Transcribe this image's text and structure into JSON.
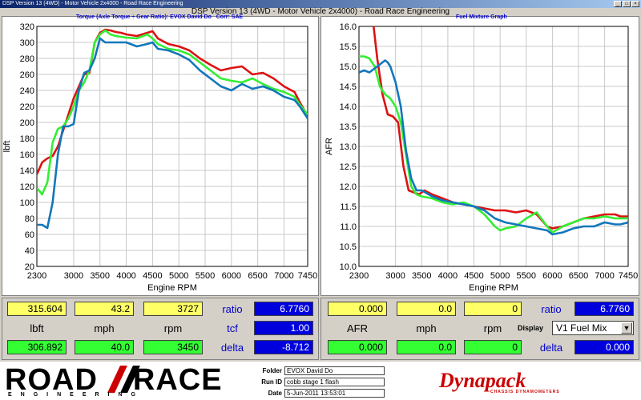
{
  "window": {
    "title": "DSP Version 13 (4WD) - Motor Vehicle 2x4000 - Road Race Engineering"
  },
  "main_title": "DSP Version 13 (4WD - Motor Vehicle 2x4000) - Road Race Engineering",
  "colors": {
    "red": "#dd1111",
    "green": "#33ee33",
    "blue": "#1177bb"
  },
  "torque_panel": {
    "title": "Torque (Axle Torque ÷ Gear Ratio): EVOX David Do",
    "corr": "Corr: SAE",
    "chart_data": {
      "type": "line",
      "xlabel": "Engine RPM",
      "ylabel": "lbft",
      "xlim": [
        2300,
        7450
      ],
      "ylim": [
        20,
        320
      ],
      "x_ticks": [
        "2300",
        "3000",
        "3500",
        "4000",
        "4500",
        "5000",
        "5500",
        "6000",
        "6500",
        "7000",
        "7450"
      ],
      "y_ticks": [
        "20",
        "40",
        "60",
        "80",
        "100",
        "120",
        "140",
        "160",
        "180",
        "200",
        "220",
        "240",
        "260",
        "280",
        "300",
        "320"
      ],
      "series": [
        {
          "color": "#dd1111",
          "x": [
            2300,
            2400,
            2500,
            2600,
            2700,
            2800,
            2900,
            3000,
            3100,
            3200,
            3300,
            3400,
            3500,
            3600,
            3700,
            3800,
            3900,
            4000,
            4200,
            4400,
            4500,
            4600,
            4800,
            5000,
            5200,
            5400,
            5600,
            5800,
            6000,
            6200,
            6400,
            6600,
            6800,
            7000,
            7200,
            7300,
            7450
          ],
          "y": [
            135,
            150,
            155,
            158,
            170,
            190,
            210,
            230,
            245,
            260,
            262,
            300,
            312,
            316,
            315,
            313,
            312,
            310,
            308,
            312,
            314,
            305,
            298,
            295,
            290,
            280,
            272,
            265,
            268,
            270,
            260,
            262,
            255,
            245,
            238,
            225,
            208
          ]
        },
        {
          "color": "#33ee33",
          "x": [
            2300,
            2400,
            2500,
            2600,
            2700,
            2800,
            2900,
            3000,
            3100,
            3200,
            3300,
            3400,
            3500,
            3600,
            3700,
            3800,
            4000,
            4200,
            4400,
            4500,
            4600,
            4800,
            5000,
            5200,
            5400,
            5600,
            5800,
            6000,
            6200,
            6400,
            6600,
            6800,
            7000,
            7200,
            7300,
            7450
          ],
          "y": [
            118,
            110,
            125,
            175,
            192,
            195,
            205,
            220,
            240,
            250,
            265,
            300,
            310,
            315,
            310,
            308,
            306,
            305,
            310,
            305,
            298,
            292,
            290,
            285,
            275,
            265,
            255,
            252,
            250,
            255,
            248,
            242,
            238,
            232,
            222,
            210
          ]
        },
        {
          "color": "#1177bb",
          "x": [
            2300,
            2400,
            2500,
            2600,
            2700,
            2800,
            2900,
            3000,
            3100,
            3200,
            3300,
            3400,
            3500,
            3600,
            3800,
            4000,
            4200,
            4400,
            4500,
            4600,
            4800,
            5000,
            5200,
            5400,
            5600,
            5800,
            6000,
            6200,
            6400,
            6600,
            6800,
            7000,
            7200,
            7300,
            7450
          ],
          "y": [
            72,
            72,
            68,
            100,
            160,
            195,
            195,
            198,
            240,
            262,
            265,
            280,
            305,
            300,
            300,
            300,
            295,
            298,
            300,
            292,
            290,
            285,
            278,
            265,
            255,
            245,
            240,
            248,
            242,
            245,
            240,
            232,
            228,
            220,
            205
          ]
        }
      ]
    }
  },
  "afr_panel": {
    "title": "Fuel Mixture Graph",
    "chart_data": {
      "type": "line",
      "xlabel": "Engine RPM",
      "ylabel": "AFR",
      "xlim": [
        2300,
        7450
      ],
      "ylim": [
        10.0,
        16.0
      ],
      "x_ticks": [
        "2300",
        "3000",
        "3500",
        "4000",
        "4500",
        "5000",
        "5500",
        "6000",
        "6500",
        "7000",
        "7450"
      ],
      "y_ticks": [
        "10.0",
        "10.5",
        "11.0",
        "11.5",
        "12.0",
        "12.5",
        "13.0",
        "13.5",
        "14.0",
        "14.5",
        "15.0",
        "15.5",
        "16.0"
      ],
      "series": [
        {
          "color": "#dd1111",
          "x": [
            2580,
            2650,
            2750,
            2850,
            2950,
            3050,
            3150,
            3250,
            3350,
            3450,
            3550,
            3700,
            3900,
            4100,
            4300,
            4500,
            4700,
            4900,
            5100,
            5300,
            5500,
            5700,
            5900,
            6000,
            6200,
            6400,
            6600,
            6800,
            7000,
            7200,
            7300,
            7450
          ],
          "y": [
            16.0,
            15.2,
            14.3,
            13.8,
            13.75,
            13.6,
            12.5,
            11.9,
            11.85,
            11.8,
            11.9,
            11.8,
            11.7,
            11.6,
            11.55,
            11.5,
            11.45,
            11.4,
            11.4,
            11.35,
            11.4,
            11.3,
            11.0,
            10.95,
            11.0,
            11.1,
            11.2,
            11.25,
            11.3,
            11.3,
            11.25,
            11.25
          ]
        },
        {
          "color": "#33ee33",
          "x": [
            2300,
            2400,
            2500,
            2600,
            2700,
            2800,
            2900,
            3000,
            3100,
            3200,
            3300,
            3400,
            3500,
            3700,
            3900,
            4100,
            4300,
            4500,
            4700,
            4900,
            5000,
            5100,
            5300,
            5500,
            5700,
            5900,
            6000,
            6200,
            6400,
            6600,
            6800,
            7000,
            7200,
            7300,
            7450
          ],
          "y": [
            15.25,
            15.25,
            15.2,
            15.0,
            14.5,
            14.3,
            14.2,
            14.0,
            13.6,
            12.8,
            12.0,
            11.8,
            11.75,
            11.7,
            11.6,
            11.55,
            11.6,
            11.5,
            11.3,
            11.0,
            10.9,
            10.95,
            11.0,
            11.2,
            11.35,
            11.0,
            10.85,
            11.0,
            11.1,
            11.2,
            11.2,
            11.25,
            11.2,
            11.2,
            11.2
          ]
        },
        {
          "color": "#1177bb",
          "x": [
            2300,
            2400,
            2500,
            2600,
            2700,
            2800,
            2850,
            2900,
            3000,
            3100,
            3200,
            3300,
            3400,
            3500,
            3700,
            3900,
            4100,
            4300,
            4500,
            4700,
            4900,
            5100,
            5300,
            5500,
            5700,
            5900,
            6000,
            6200,
            6400,
            6600,
            6800,
            7000,
            7200,
            7300,
            7450
          ],
          "y": [
            14.85,
            14.9,
            14.85,
            14.95,
            15.05,
            15.15,
            15.1,
            15.0,
            14.6,
            14.0,
            12.9,
            12.2,
            11.9,
            11.9,
            11.75,
            11.65,
            11.6,
            11.55,
            11.5,
            11.4,
            11.2,
            11.1,
            11.05,
            11.0,
            10.95,
            10.9,
            10.8,
            10.85,
            10.95,
            11.0,
            11.0,
            11.1,
            11.05,
            11.05,
            11.1
          ]
        }
      ]
    }
  },
  "left_readout": {
    "row1": {
      "lbft": "315.604",
      "mph": "43.2",
      "rpm": "3727"
    },
    "labels": {
      "lbft": "lbft",
      "mph": "mph",
      "rpm": "rpm"
    },
    "row2": {
      "lbft": "306.892",
      "mph": "40.0",
      "rpm": "3450"
    },
    "ratio_label": "ratio",
    "ratio": "6.7760",
    "tcf_label": "tcf",
    "tcf": "1.00",
    "delta_label": "delta",
    "delta": "-8.712"
  },
  "right_readout": {
    "row1": {
      "afr": "0.000",
      "mph": "0.0",
      "rpm": "0"
    },
    "labels": {
      "afr": "AFR",
      "mph": "mph",
      "rpm": "rpm"
    },
    "row2": {
      "afr": "0.000",
      "mph": "0.0",
      "rpm": "0"
    },
    "ratio_label": "ratio",
    "ratio": "6.7760",
    "display_label": "Display",
    "display_value": "V1 Fuel Mix",
    "delta_label": "delta",
    "delta": "0.000"
  },
  "footer": {
    "logo_left": "ROAD",
    "logo_right": "RACE",
    "logo_sub": "ENGINEERING",
    "folder_label": "Folder",
    "folder_value": "EVOX David Do",
    "runid_label": "Run ID",
    "runid_value": "cobb stage 1 flash",
    "date_label": "Date",
    "date_value": "5-Jun-2011 13:53:01",
    "brand": "Dynapack",
    "brand_sub": "CHASSIS DYNAMOMETERS"
  }
}
